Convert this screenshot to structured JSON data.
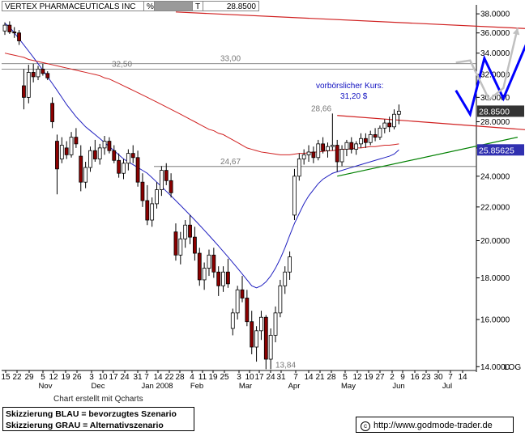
{
  "header": {
    "symbol_name": "VERTEX PHARMACEUTICALS INC",
    "pct_label": "%",
    "t_label": "T",
    "last_price": "28.8500"
  },
  "footer": {
    "credit": "Chart erstellt mit Qcharts",
    "legend_line1": "Skizzierung BLAU = bevorzugtes Szenario",
    "legend_line2": "Skizzierung GRAU = Alternativszenario",
    "copyright_symbol": "c",
    "website": "http://www.godmode-trader.de",
    "log_label": "LOG"
  },
  "colors": {
    "candle": "#000000",
    "bear_body": "#8b0000",
    "ma_blue": "#2020c0",
    "ma_red": "#d02020",
    "scenario_blue": "#0000ff",
    "scenario_gray": "#c0c0c0",
    "trend_green": "#008000",
    "axis_text": "#000000"
  },
  "chart_data": {
    "type": "candlestick",
    "title": "VERTEX PHARMACEUTICALS INC",
    "yscale": "log",
    "ylim": [
      13.85,
      38.8
    ],
    "y_ticks": [
      "38.0000",
      "36.0000",
      "34.0000",
      "32.0000",
      "30.0000",
      "28.0000",
      "26.0000",
      "24.0000",
      "22.0000",
      "20.0000",
      "18.0000",
      "16.0000",
      "14.0000"
    ],
    "x_day_labels": [
      "15",
      "22",
      "29",
      "5",
      "12",
      "19",
      "26",
      "3",
      "10",
      "17",
      "24",
      "31",
      "7",
      "14",
      "22",
      "28",
      "4",
      "11",
      "19",
      "25",
      "3",
      "10",
      "17",
      "24",
      "31",
      "7",
      "14",
      "21",
      "28",
      "5",
      "12",
      "19",
      "27",
      "2",
      "9",
      "16",
      "23",
      "30",
      "7",
      "14"
    ],
    "x_month_labels": [
      "Nov",
      "Dec",
      "Jan 2008",
      "Feb",
      "Mar",
      "Apr",
      "May",
      "Jun",
      "Jul"
    ],
    "price_badges": [
      {
        "label": "28.8500",
        "value": 28.85,
        "style": "dark"
      },
      {
        "label": "25.85625",
        "value": 25.856,
        "style": "blue"
      }
    ],
    "horizontal_levels": [
      {
        "label": "33,00",
        "value": 33.0
      },
      {
        "label": "32,50",
        "value": 32.5
      },
      {
        "label": "24,67",
        "value": 24.67
      },
      {
        "label": "13,84",
        "value": 13.84
      }
    ],
    "annotations": [
      {
        "label": "28,66",
        "value": 28.66
      },
      {
        "label": "vorbörslicher Kurs:",
        "value": null
      },
      {
        "label": "31,20 $",
        "value": 31.2
      }
    ],
    "candles": [
      [
        36.2,
        37.1,
        35.8,
        36.8
      ],
      [
        36.8,
        37.2,
        35.9,
        36.1
      ],
      [
        36.1,
        36.6,
        35.5,
        36.0
      ],
      [
        36.0,
        36.3,
        34.8,
        35.2
      ],
      [
        31.0,
        32.5,
        29.0,
        30.0
      ],
      [
        30.0,
        32.9,
        29.5,
        32.2
      ],
      [
        32.2,
        33.0,
        31.3,
        31.8
      ],
      [
        31.8,
        32.8,
        31.5,
        32.5
      ],
      [
        32.5,
        33.0,
        31.9,
        32.1
      ],
      [
        32.1,
        32.3,
        31.5,
        31.7
      ],
      [
        29.5,
        30.0,
        27.5,
        28.0
      ],
      [
        26.5,
        27.0,
        22.8,
        24.5
      ],
      [
        25.2,
        26.8,
        24.9,
        26.2
      ],
      [
        26.0,
        26.5,
        25.2,
        25.5
      ],
      [
        25.5,
        27.2,
        25.3,
        26.8
      ],
      [
        26.8,
        27.5,
        26.0,
        26.3
      ],
      [
        25.4,
        26.2,
        23.0,
        23.6
      ],
      [
        23.6,
        25.0,
        23.2,
        24.6
      ],
      [
        24.6,
        26.1,
        24.3,
        25.8
      ],
      [
        25.8,
        26.6,
        25.0,
        25.2
      ],
      [
        25.2,
        26.3,
        24.8,
        26.0
      ],
      [
        26.0,
        26.9,
        25.5,
        26.5
      ],
      [
        26.5,
        26.8,
        25.6,
        25.8
      ],
      [
        25.8,
        26.2,
        24.9,
        25.1
      ],
      [
        25.1,
        25.6,
        23.9,
        24.2
      ],
      [
        24.2,
        25.2,
        23.8,
        24.9
      ],
      [
        24.9,
        25.9,
        24.4,
        25.6
      ],
      [
        25.6,
        26.2,
        24.9,
        25.3
      ],
      [
        25.3,
        25.8,
        23.3,
        23.6
      ],
      [
        23.6,
        24.2,
        22.0,
        22.4
      ],
      [
        22.4,
        23.4,
        20.9,
        21.2
      ],
      [
        21.2,
        22.6,
        20.8,
        22.2
      ],
      [
        22.2,
        23.6,
        21.9,
        23.1
      ],
      [
        23.1,
        24.7,
        22.7,
        24.4
      ],
      [
        24.4,
        24.9,
        23.4,
        23.7
      ],
      [
        23.7,
        24.2,
        22.6,
        22.9
      ],
      [
        20.5,
        21.0,
        18.9,
        19.2
      ],
      [
        19.2,
        20.5,
        18.7,
        20.1
      ],
      [
        20.1,
        21.2,
        19.6,
        20.9
      ],
      [
        20.9,
        21.5,
        19.8,
        20.2
      ],
      [
        20.2,
        20.8,
        18.9,
        19.3
      ],
      [
        19.3,
        19.6,
        17.6,
        17.9
      ],
      [
        17.9,
        18.8,
        17.4,
        18.5
      ],
      [
        18.5,
        19.5,
        18.1,
        19.2
      ],
      [
        19.2,
        19.6,
        18.0,
        18.3
      ],
      [
        18.3,
        18.6,
        17.1,
        17.6
      ],
      [
        17.6,
        18.6,
        17.3,
        18.3
      ],
      [
        18.3,
        19.0,
        17.5,
        17.7
      ],
      [
        15.6,
        16.5,
        15.3,
        16.3
      ],
      [
        16.3,
        17.6,
        16.0,
        17.4
      ],
      [
        17.4,
        18.1,
        16.8,
        17.0
      ],
      [
        17.0,
        17.4,
        15.7,
        15.9
      ],
      [
        15.9,
        16.4,
        14.5,
        14.8
      ],
      [
        14.8,
        15.7,
        14.2,
        15.5
      ],
      [
        15.5,
        16.4,
        15.1,
        16.1
      ],
      [
        16.1,
        16.2,
        13.9,
        14.3
      ],
      [
        14.3,
        15.6,
        13.9,
        15.3
      ],
      [
        15.3,
        16.6,
        15.0,
        16.3
      ],
      [
        16.3,
        17.9,
        16.1,
        17.6
      ],
      [
        17.6,
        18.6,
        17.2,
        18.3
      ],
      [
        18.3,
        19.4,
        17.9,
        19.1
      ],
      [
        21.5,
        24.5,
        21.2,
        24.0
      ],
      [
        24.0,
        25.6,
        23.7,
        25.2
      ],
      [
        25.2,
        25.9,
        24.8,
        25.5
      ],
      [
        25.5,
        26.2,
        25.0,
        25.7
      ],
      [
        25.7,
        26.1,
        24.9,
        25.3
      ],
      [
        25.3,
        26.6,
        25.1,
        26.3
      ],
      [
        26.3,
        26.8,
        25.6,
        25.8
      ],
      [
        25.8,
        26.4,
        25.3,
        26.1
      ],
      [
        26.1,
        28.66,
        25.8,
        26.2
      ],
      [
        26.2,
        26.6,
        24.3,
        25.0
      ],
      [
        25.0,
        26.2,
        24.7,
        25.9
      ],
      [
        25.9,
        26.6,
        25.4,
        26.4
      ],
      [
        26.4,
        26.8,
        25.6,
        25.9
      ],
      [
        25.9,
        26.5,
        25.5,
        26.3
      ],
      [
        26.3,
        27.1,
        26.0,
        26.7
      ],
      [
        26.7,
        27.1,
        26.0,
        26.4
      ],
      [
        26.4,
        27.3,
        26.2,
        27.0
      ],
      [
        27.0,
        27.5,
        26.5,
        26.8
      ],
      [
        26.8,
        27.7,
        26.6,
        27.5
      ],
      [
        27.5,
        28.2,
        27.1,
        27.9
      ],
      [
        27.9,
        28.4,
        27.2,
        27.6
      ],
      [
        27.6,
        29.0,
        27.4,
        28.6
      ],
      [
        28.6,
        29.4,
        27.8,
        28.85
      ]
    ],
    "moving_averages": [
      {
        "color": "blue",
        "values": [
          37.0,
          36.6,
          36.0,
          35.4,
          34.8,
          34.2,
          33.6,
          33.0,
          32.4,
          31.8,
          31.2,
          30.6,
          30.0,
          29.4,
          28.9,
          28.4,
          28.0,
          27.6,
          27.3,
          27.0,
          26.7,
          26.4,
          26.1,
          25.8,
          25.5,
          25.2,
          25.0,
          24.8,
          24.6,
          24.4,
          24.2,
          23.9,
          23.6,
          23.3,
          23.0,
          22.7,
          22.4,
          22.1,
          21.8,
          21.5,
          21.2,
          20.9,
          20.6,
          20.3,
          20.0,
          19.7,
          19.4,
          19.1,
          18.8,
          18.5,
          18.2,
          17.9,
          17.6,
          17.5,
          17.6,
          17.8,
          18.1,
          18.5,
          19.0,
          19.6,
          20.3,
          21.0,
          21.6,
          22.2,
          22.7,
          23.1,
          23.5,
          23.8,
          24.0,
          24.2,
          24.3,
          24.4,
          24.5,
          24.6,
          24.7,
          24.8,
          24.9,
          25.0,
          25.1,
          25.2,
          25.3,
          25.4,
          25.55,
          25.856
        ]
      },
      {
        "color": "red",
        "values": [
          34.0,
          33.9,
          33.8,
          33.7,
          33.6,
          33.4,
          33.3,
          33.2,
          33.1,
          33.0,
          32.9,
          32.8,
          32.7,
          32.6,
          32.5,
          32.4,
          32.3,
          32.2,
          32.1,
          32.0,
          31.9,
          31.7,
          31.6,
          31.4,
          31.2,
          31.0,
          30.8,
          30.6,
          30.4,
          30.2,
          30.0,
          29.8,
          29.6,
          29.4,
          29.2,
          29.0,
          28.8,
          28.6,
          28.4,
          28.2,
          28.0,
          27.8,
          27.6,
          27.4,
          27.3,
          27.1,
          27.0,
          26.8,
          26.6,
          26.4,
          26.2,
          26.0,
          25.9,
          25.8,
          25.7,
          25.65,
          25.6,
          25.55,
          25.5,
          25.5,
          25.5,
          25.55,
          25.6,
          25.6,
          25.65,
          25.7,
          25.7,
          25.75,
          25.8,
          25.8,
          25.85,
          25.9,
          25.9,
          25.95,
          26.0,
          26.0,
          26.05,
          26.1,
          26.1,
          26.15,
          26.2,
          26.2,
          26.25,
          26.3
        ]
      }
    ],
    "trendlines": [
      {
        "color": "red",
        "from": {
          "i": 36,
          "v": 38.2
        },
        "to": {
          "i": 112,
          "v": 36.4
        }
      },
      {
        "color": "red",
        "from": {
          "i": 70,
          "v": 28.5
        },
        "to": {
          "i": 116,
          "v": 27.2
        }
      },
      {
        "color": "green",
        "from": {
          "i": 70,
          "v": 24.0
        },
        "to": {
          "i": 108,
          "v": 26.8
        }
      }
    ],
    "scenarios": [
      {
        "color": "blue",
        "points": [
          [
            95,
            30.6
          ],
          [
            98,
            28.6
          ],
          [
            101,
            33.5
          ],
          [
            105,
            29.9
          ],
          [
            111,
            36.2
          ]
        ]
      },
      {
        "color": "gray",
        "points": [
          [
            95,
            33.1
          ],
          [
            98,
            33.3
          ],
          [
            102,
            29.8
          ],
          [
            105,
            30.8
          ],
          [
            108,
            36.5
          ]
        ]
      }
    ],
    "grid": false
  }
}
